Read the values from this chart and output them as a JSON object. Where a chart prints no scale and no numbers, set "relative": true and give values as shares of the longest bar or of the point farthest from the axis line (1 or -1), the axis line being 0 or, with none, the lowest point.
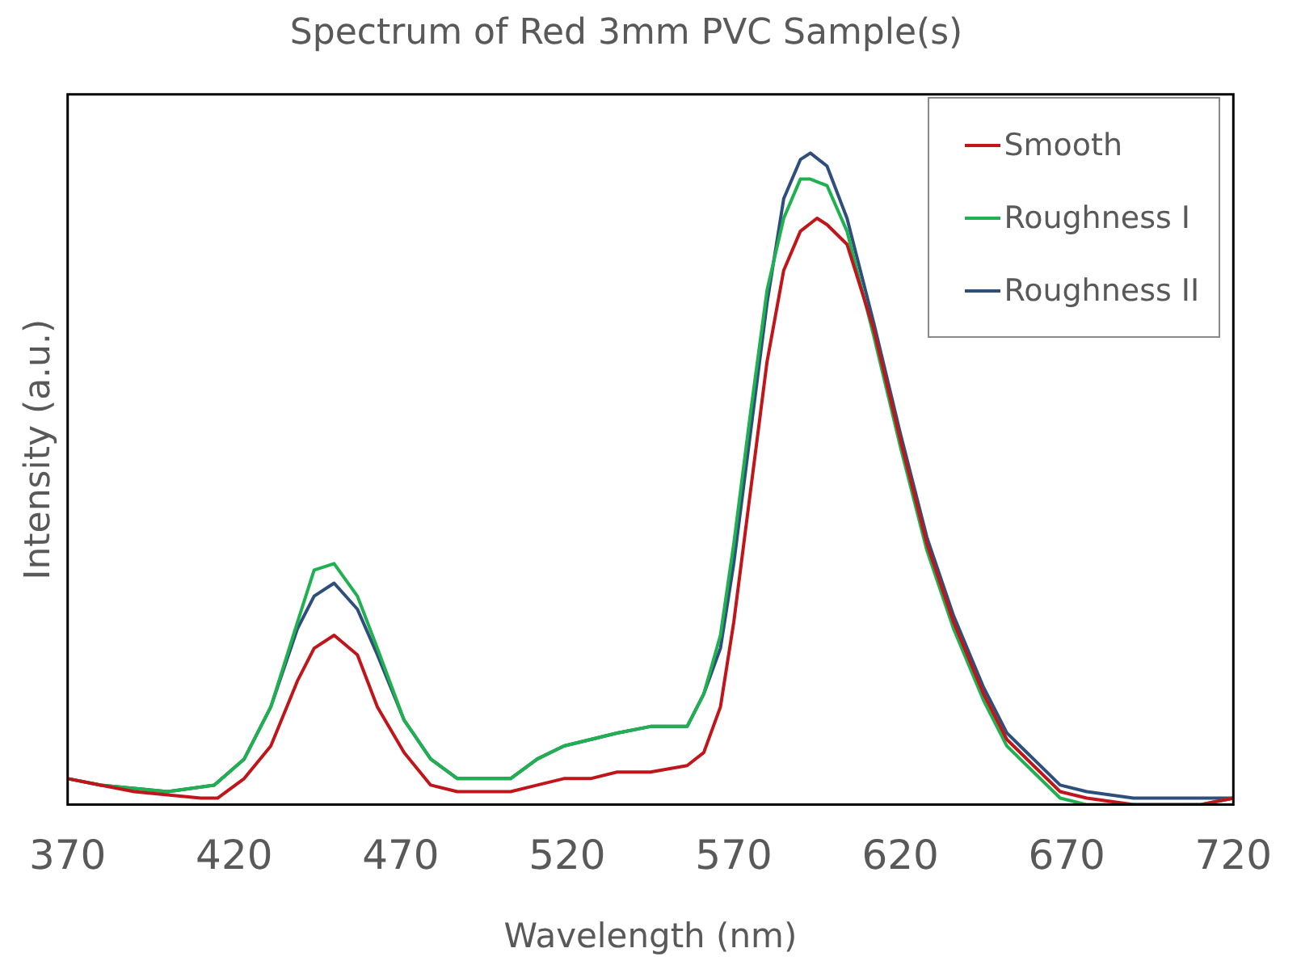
{
  "chart_data": {
    "type": "line",
    "title": "Spectrum of Red 3mm PVC Sample(s)",
    "xlabel": "Wavelength (nm)",
    "ylabel": "Intensity (a.u.)",
    "relative": true,
    "xlim": [
      370,
      720
    ],
    "xticks": [
      370,
      420,
      470,
      520,
      570,
      620,
      670,
      720
    ],
    "grid": false,
    "legend": "top right",
    "marker": "none",
    "line_style": "solid",
    "series": [
      {
        "name": "Smooth",
        "color": "#c0161b",
        "x": [
          370,
          380,
          390,
          410,
          415,
          423,
          431,
          439,
          444,
          450,
          457,
          463,
          471,
          479,
          487,
          495,
          503,
          511,
          519,
          527,
          535,
          545,
          556,
          561,
          566,
          570,
          575,
          580,
          585,
          590,
          595,
          598,
          604,
          612,
          620,
          628,
          636,
          645,
          652,
          660,
          668,
          676,
          690,
          710,
          720
        ],
        "values": [
          0.04,
          0.03,
          0.02,
          0.01,
          0.01,
          0.04,
          0.09,
          0.19,
          0.24,
          0.26,
          0.23,
          0.15,
          0.08,
          0.03,
          0.02,
          0.02,
          0.02,
          0.03,
          0.04,
          0.04,
          0.05,
          0.05,
          0.06,
          0.08,
          0.15,
          0.28,
          0.48,
          0.68,
          0.82,
          0.88,
          0.9,
          0.89,
          0.86,
          0.73,
          0.56,
          0.4,
          0.28,
          0.17,
          0.1,
          0.06,
          0.02,
          0.01,
          0,
          0,
          0.01
        ]
      },
      {
        "name": "Roughness I",
        "color": "#1fb050",
        "x": [
          370,
          380,
          400,
          414,
          423,
          431,
          439,
          444,
          450,
          457,
          463,
          471,
          479,
          487,
          495,
          503,
          511,
          519,
          527,
          535,
          545,
          556,
          561,
          566,
          570,
          575,
          580,
          585,
          590,
          593,
          598,
          604,
          612,
          620,
          628,
          636,
          645,
          652,
          660,
          668,
          676,
          690,
          710,
          720
        ],
        "values": [
          0.04,
          0.03,
          0.02,
          0.03,
          0.07,
          0.15,
          0.28,
          0.36,
          0.37,
          0.32,
          0.24,
          0.13,
          0.07,
          0.04,
          0.04,
          0.04,
          0.07,
          0.09,
          0.1,
          0.11,
          0.12,
          0.12,
          0.17,
          0.26,
          0.4,
          0.6,
          0.79,
          0.9,
          0.96,
          0.96,
          0.95,
          0.88,
          0.72,
          0.55,
          0.39,
          0.27,
          0.16,
          0.09,
          0.05,
          0.01,
          0,
          0,
          0,
          0.01
        ]
      },
      {
        "name": "Roughness II",
        "color": "#2e4f7c",
        "x": [
          370,
          380,
          400,
          414,
          423,
          431,
          439,
          444,
          450,
          457,
          463,
          471,
          479,
          487,
          495,
          503,
          511,
          519,
          527,
          535,
          545,
          556,
          561,
          566,
          570,
          575,
          580,
          585,
          590,
          593,
          598,
          604,
          612,
          620,
          628,
          636,
          645,
          652,
          660,
          668,
          676,
          690,
          710,
          720
        ],
        "values": [
          0.04,
          0.03,
          0.02,
          0.03,
          0.07,
          0.15,
          0.27,
          0.32,
          0.34,
          0.3,
          0.23,
          0.13,
          0.07,
          0.04,
          0.04,
          0.04,
          0.07,
          0.09,
          0.1,
          0.11,
          0.12,
          0.12,
          0.17,
          0.24,
          0.37,
          0.57,
          0.77,
          0.93,
          0.99,
          1,
          0.98,
          0.9,
          0.74,
          0.57,
          0.41,
          0.29,
          0.18,
          0.11,
          0.07,
          0.03,
          0.02,
          0.01,
          0.01,
          0.01
        ]
      }
    ]
  }
}
